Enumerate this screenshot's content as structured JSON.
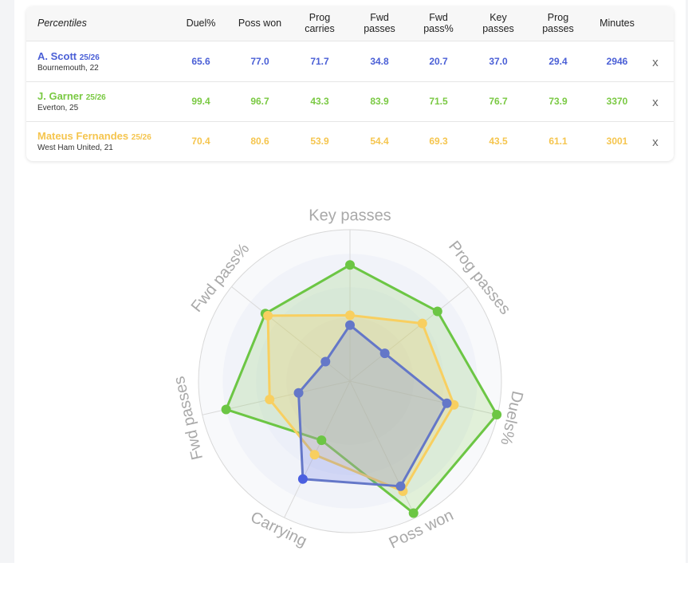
{
  "table": {
    "corner": "Percentiles",
    "columns": [
      "Duel%",
      "Poss won",
      "Prog carries",
      "Fwd passes",
      "Fwd pass%",
      "Key passes",
      "Prog passes",
      "Minutes"
    ],
    "rows": [
      {
        "name": "A. Scott",
        "season": "25/26",
        "club": "Bournemouth, 22",
        "color": "#4a5fd6",
        "values": [
          65.6,
          77,
          71.7,
          34.8,
          20.7,
          37,
          29.4
        ],
        "value_labels": [
          "65.6",
          "77.0",
          "71.7",
          "34.8",
          "20.7",
          "37.0",
          "29.4"
        ],
        "minutes": 2946,
        "remove": "x"
      },
      {
        "name": "J. Garner",
        "season": "25/26",
        "club": "Everton, 25",
        "color": "#7ac943",
        "values": [
          99.4,
          96.7,
          43.3,
          83.9,
          71.5,
          76.7,
          73.9
        ],
        "value_labels": [
          "99.4",
          "96.7",
          "43.3",
          "83.9",
          "71.5",
          "76.7",
          "73.9"
        ],
        "minutes": 3370,
        "remove": "x"
      },
      {
        "name": "Mateus Fernandes",
        "season": "25/26",
        "club": "West Ham United, 21",
        "color": "#f5c54e",
        "values": [
          70.4,
          80.6,
          53.9,
          54.4,
          69.3,
          43.5,
          61.1
        ],
        "value_labels": [
          "70.4",
          "80.6",
          "53.9",
          "54.4",
          "69.3",
          "43.5",
          "61.1"
        ],
        "minutes": 3001,
        "remove": "x"
      }
    ]
  },
  "radar": {
    "axes": [
      "Key passes",
      "Prog passes",
      "Duels%",
      "Poss won",
      "Carrying",
      "Fwd passes",
      "Fwd pass%"
    ],
    "rlim": [
      0,
      100
    ]
  }
}
